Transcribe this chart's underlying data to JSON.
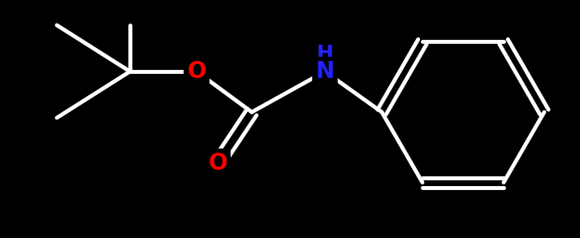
{
  "background_color": "#000000",
  "bond_color": "#ffffff",
  "bond_width": 3.5,
  "atom_colors": {
    "O": "#ff0000",
    "N": "#2222ff",
    "C": "#ffffff",
    "H": "#ffffff"
  },
  "figsize": [
    7.14,
    2.93
  ],
  "dpi": 100,
  "xlim": [
    0,
    714
  ],
  "ylim": [
    0,
    293
  ]
}
